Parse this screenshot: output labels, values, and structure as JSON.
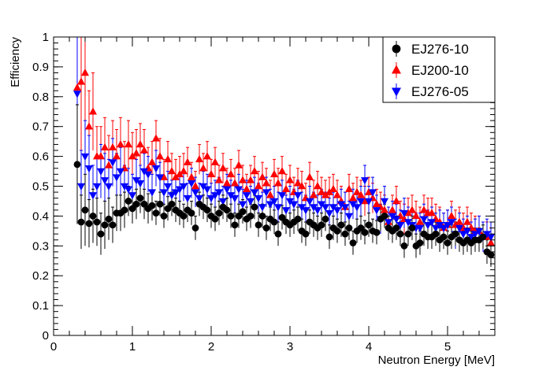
{
  "chart_data": {
    "type": "scatter",
    "title": "",
    "xlabel": "Neutron Energy [MeV]",
    "ylabel": "Efficiency",
    "xlim": [
      0,
      5.6
    ],
    "ylim": [
      0,
      1
    ],
    "x_ticks": [
      "0",
      "1",
      "2",
      "3",
      "4",
      "5"
    ],
    "y_ticks": [
      "0",
      "0.1",
      "0.2",
      "0.3",
      "0.4",
      "0.5",
      "0.6",
      "0.7",
      "0.8",
      "0.9",
      "1"
    ],
    "legend_position": "top-right",
    "x": [
      0.3,
      0.35,
      0.4,
      0.45,
      0.5,
      0.55,
      0.6,
      0.65,
      0.7,
      0.75,
      0.8,
      0.85,
      0.9,
      0.95,
      1.0,
      1.05,
      1.1,
      1.15,
      1.2,
      1.25,
      1.3,
      1.35,
      1.4,
      1.45,
      1.5,
      1.55,
      1.6,
      1.65,
      1.7,
      1.75,
      1.8,
      1.85,
      1.9,
      1.95,
      2.0,
      2.05,
      2.1,
      2.15,
      2.2,
      2.25,
      2.3,
      2.35,
      2.4,
      2.45,
      2.5,
      2.55,
      2.6,
      2.65,
      2.7,
      2.75,
      2.8,
      2.85,
      2.9,
      2.95,
      3.0,
      3.05,
      3.1,
      3.15,
      3.2,
      3.25,
      3.3,
      3.35,
      3.4,
      3.45,
      3.5,
      3.55,
      3.6,
      3.65,
      3.7,
      3.75,
      3.8,
      3.85,
      3.9,
      3.95,
      4.0,
      4.05,
      4.1,
      4.15,
      4.2,
      4.25,
      4.3,
      4.35,
      4.4,
      4.45,
      4.5,
      4.55,
      4.6,
      4.65,
      4.7,
      4.75,
      4.8,
      4.85,
      4.9,
      4.95,
      5.0,
      5.05,
      5.1,
      5.15,
      5.2,
      5.25,
      5.3,
      5.35,
      5.4,
      5.45,
      5.5,
      5.55
    ],
    "series": [
      {
        "name": "EJ276-10",
        "marker": "circle",
        "color": "#000000",
        "values": [
          0.573,
          0.38,
          0.42,
          0.375,
          0.4,
          0.38,
          0.34,
          0.37,
          0.39,
          0.37,
          0.41,
          0.41,
          0.42,
          0.45,
          0.425,
          0.44,
          0.46,
          0.44,
          0.425,
          0.435,
          0.41,
          0.44,
          0.4,
          0.425,
          0.44,
          0.42,
          0.41,
          0.4,
          0.42,
          0.41,
          0.36,
          0.44,
          0.43,
          0.42,
          0.4,
          0.39,
          0.41,
          0.43,
          0.42,
          0.4,
          0.37,
          0.4,
          0.415,
          0.39,
          0.4,
          0.43,
          0.37,
          0.4,
          0.36,
          0.39,
          0.38,
          0.34,
          0.395,
          0.38,
          0.37,
          0.38,
          0.39,
          0.35,
          0.34,
          0.38,
          0.37,
          0.36,
          0.37,
          0.39,
          0.33,
          0.36,
          0.35,
          0.37,
          0.34,
          0.36,
          0.31,
          0.35,
          0.36,
          0.345,
          0.37,
          0.35,
          0.345,
          0.39,
          0.4,
          0.36,
          0.35,
          0.36,
          0.34,
          0.3,
          0.34,
          0.36,
          0.3,
          0.31,
          0.34,
          0.33,
          0.33,
          0.34,
          0.32,
          0.33,
          0.31,
          0.33,
          0.34,
          0.32,
          0.31,
          0.32,
          0.31,
          0.32,
          0.32,
          0.33,
          0.28,
          0.27
        ],
        "errors": [
          0.2,
          0.09,
          0.12,
          0.08,
          0.09,
          0.08,
          0.07,
          0.08,
          0.07,
          0.06,
          0.06,
          0.06,
          0.06,
          0.05,
          0.05,
          0.05,
          0.05,
          0.05,
          0.05,
          0.05,
          0.04,
          0.04,
          0.04,
          0.04,
          0.04,
          0.04,
          0.04,
          0.04,
          0.04,
          0.04,
          0.04,
          0.04,
          0.04,
          0.04,
          0.04,
          0.04,
          0.04,
          0.04,
          0.04,
          0.04,
          0.04,
          0.04,
          0.04,
          0.04,
          0.04,
          0.04,
          0.04,
          0.04,
          0.04,
          0.04,
          0.04,
          0.04,
          0.04,
          0.04,
          0.04,
          0.04,
          0.04,
          0.04,
          0.04,
          0.04,
          0.04,
          0.04,
          0.04,
          0.04,
          0.04,
          0.04,
          0.04,
          0.04,
          0.04,
          0.04,
          0.04,
          0.04,
          0.04,
          0.04,
          0.04,
          0.04,
          0.04,
          0.04,
          0.04,
          0.04,
          0.04,
          0.04,
          0.04,
          0.04,
          0.04,
          0.04,
          0.04,
          0.04,
          0.04,
          0.04,
          0.04,
          0.04,
          0.04,
          0.04,
          0.04,
          0.04,
          0.04,
          0.04,
          0.04,
          0.04,
          0.04,
          0.04,
          0.04,
          0.04,
          0.04,
          0.04
        ]
      },
      {
        "name": "EJ200-10",
        "marker": "triangle-up",
        "color": "#ff0000",
        "values": [
          0.83,
          0.85,
          0.88,
          0.7,
          0.75,
          0.6,
          0.6,
          0.63,
          0.57,
          0.63,
          0.6,
          0.64,
          0.56,
          0.64,
          0.6,
          0.61,
          0.64,
          0.62,
          0.56,
          0.58,
          0.66,
          0.6,
          0.53,
          0.59,
          0.55,
          0.53,
          0.54,
          0.55,
          0.58,
          0.53,
          0.5,
          0.59,
          0.56,
          0.6,
          0.54,
          0.58,
          0.52,
          0.56,
          0.51,
          0.54,
          0.51,
          0.57,
          0.52,
          0.49,
          0.52,
          0.55,
          0.5,
          0.53,
          0.51,
          0.47,
          0.54,
          0.51,
          0.55,
          0.49,
          0.52,
          0.48,
          0.51,
          0.5,
          0.46,
          0.53,
          0.47,
          0.5,
          0.48,
          0.47,
          0.48,
          0.49,
          0.47,
          0.45,
          0.43,
          0.49,
          0.46,
          0.48,
          0.47,
          0.45,
          0.48,
          0.46,
          0.44,
          0.43,
          0.42,
          0.38,
          0.42,
          0.45,
          0.4,
          0.39,
          0.41,
          0.42,
          0.4,
          0.38,
          0.42,
          0.41,
          0.41,
          0.39,
          0.38,
          0.36,
          0.37,
          0.4,
          0.37,
          0.38,
          0.36,
          0.38,
          0.36,
          0.35,
          0.35,
          0.33,
          0.33,
          0.31
        ],
        "errors": [
          0.25,
          0.25,
          0.2,
          0.12,
          0.13,
          0.1,
          0.1,
          0.1,
          0.1,
          0.09,
          0.09,
          0.09,
          0.09,
          0.08,
          0.08,
          0.08,
          0.07,
          0.07,
          0.07,
          0.07,
          0.06,
          0.06,
          0.06,
          0.06,
          0.06,
          0.06,
          0.06,
          0.06,
          0.05,
          0.05,
          0.05,
          0.05,
          0.05,
          0.05,
          0.05,
          0.05,
          0.05,
          0.05,
          0.05,
          0.05,
          0.05,
          0.05,
          0.05,
          0.05,
          0.05,
          0.05,
          0.05,
          0.05,
          0.05,
          0.05,
          0.05,
          0.05,
          0.05,
          0.05,
          0.05,
          0.05,
          0.05,
          0.05,
          0.05,
          0.05,
          0.05,
          0.05,
          0.05,
          0.05,
          0.05,
          0.05,
          0.05,
          0.05,
          0.05,
          0.05,
          0.05,
          0.05,
          0.05,
          0.05,
          0.05,
          0.05,
          0.05,
          0.05,
          0.05,
          0.05,
          0.05,
          0.05,
          0.05,
          0.05,
          0.05,
          0.05,
          0.05,
          0.05,
          0.05,
          0.05,
          0.05,
          0.05,
          0.05,
          0.05,
          0.05,
          0.05,
          0.05,
          0.05,
          0.05,
          0.05,
          0.05,
          0.05,
          0.05,
          0.05,
          0.05,
          0.05
        ]
      },
      {
        "name": "EJ276-05",
        "marker": "triangle-down",
        "color": "#0000ff",
        "values": [
          0.81,
          0.5,
          0.6,
          0.56,
          0.47,
          0.5,
          0.55,
          0.52,
          0.5,
          0.58,
          0.53,
          0.55,
          0.5,
          0.49,
          0.47,
          0.52,
          0.51,
          0.55,
          0.54,
          0.48,
          0.56,
          0.53,
          0.48,
          0.5,
          0.47,
          0.48,
          0.49,
          0.5,
          0.46,
          0.51,
          0.48,
          0.46,
          0.5,
          0.49,
          0.46,
          0.47,
          0.48,
          0.45,
          0.49,
          0.47,
          0.46,
          0.49,
          0.44,
          0.47,
          0.45,
          0.48,
          0.46,
          0.43,
          0.48,
          0.44,
          0.45,
          0.43,
          0.47,
          0.42,
          0.45,
          0.44,
          0.47,
          0.43,
          0.42,
          0.45,
          0.43,
          0.42,
          0.44,
          0.43,
          0.41,
          0.43,
          0.42,
          0.44,
          0.43,
          0.4,
          0.44,
          0.43,
          0.45,
          0.52,
          0.45,
          0.48,
          0.42,
          0.39,
          0.45,
          0.38,
          0.4,
          0.39,
          0.37,
          0.41,
          0.38,
          0.37,
          0.36,
          0.36,
          0.39,
          0.37,
          0.38,
          0.36,
          0.37,
          0.36,
          0.37,
          0.38,
          0.34,
          0.36,
          0.34,
          0.35,
          0.33,
          0.34,
          0.35,
          0.33,
          0.34,
          0.33
        ],
        "errors": [
          0.3,
          0.12,
          0.12,
          0.11,
          0.1,
          0.1,
          0.09,
          0.09,
          0.09,
          0.08,
          0.08,
          0.08,
          0.07,
          0.07,
          0.07,
          0.07,
          0.06,
          0.06,
          0.06,
          0.06,
          0.06,
          0.05,
          0.05,
          0.05,
          0.05,
          0.05,
          0.05,
          0.05,
          0.05,
          0.05,
          0.05,
          0.05,
          0.05,
          0.05,
          0.05,
          0.05,
          0.05,
          0.05,
          0.05,
          0.05,
          0.05,
          0.05,
          0.05,
          0.05,
          0.05,
          0.05,
          0.05,
          0.05,
          0.05,
          0.05,
          0.05,
          0.05,
          0.05,
          0.05,
          0.05,
          0.05,
          0.05,
          0.05,
          0.05,
          0.05,
          0.05,
          0.05,
          0.05,
          0.05,
          0.05,
          0.05,
          0.05,
          0.05,
          0.05,
          0.05,
          0.05,
          0.05,
          0.05,
          0.05,
          0.05,
          0.05,
          0.05,
          0.05,
          0.05,
          0.05,
          0.05,
          0.05,
          0.05,
          0.05,
          0.05,
          0.05,
          0.05,
          0.05,
          0.05,
          0.05,
          0.05,
          0.05,
          0.05,
          0.05,
          0.05,
          0.05,
          0.05,
          0.05,
          0.05,
          0.05,
          0.05,
          0.05,
          0.05,
          0.05,
          0.05,
          0.05
        ]
      }
    ]
  }
}
